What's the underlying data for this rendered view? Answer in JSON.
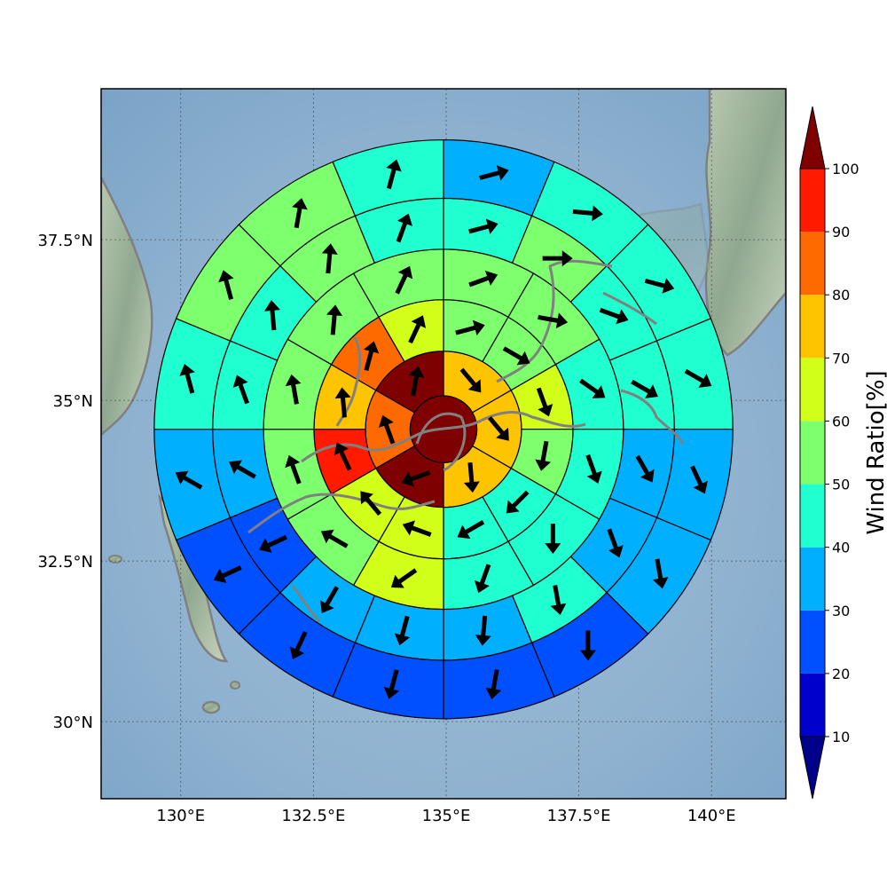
{
  "chart_data": {
    "type": "polar-sector-map",
    "colorbar": {
      "label": "Wind Ratio[%]",
      "ticks": [
        "10",
        "20",
        "30",
        "40",
        "50",
        "60",
        "70",
        "80",
        "90",
        "100"
      ],
      "levels": [
        10,
        20,
        30,
        40,
        50,
        60,
        70,
        80,
        90,
        100
      ],
      "extend": "both",
      "colors": [
        "#00008b",
        "#0000cd",
        "#0050ff",
        "#00b0ff",
        "#20ffd0",
        "#7dff6e",
        "#d2ff1a",
        "#ffc400",
        "#ff6a00",
        "#ff1a00",
        "#7f0000"
      ]
    },
    "x_ticks": [
      "130°E",
      "132.5°E",
      "135°E",
      "137.5°E",
      "140°E"
    ],
    "y_ticks": [
      "37.5°N",
      "35°N",
      "32.5°N",
      "30°N"
    ],
    "lon_range": [
      128.5,
      141.4
    ],
    "lat_range": [
      28.8,
      39.85
    ],
    "grid": true,
    "center": {
      "lon": 134.95,
      "lat": 34.55
    },
    "ring_outer_radii_deg": [
      0.63,
      1.47,
      2.44,
      3.39,
      4.35,
      5.45
    ],
    "rings": [
      {
        "sector_count": 1,
        "values": [
          100
        ],
        "arrow_directions": [
          null
        ]
      },
      {
        "sector_count": 6,
        "values": [
          75,
          70,
          75,
          100,
          80,
          100
        ],
        "arrow_directions": [
          140,
          140,
          175,
          250,
          340,
          10
        ]
      },
      {
        "sector_count": 12,
        "values": [
          55,
          55,
          65,
          55,
          45,
          45,
          65,
          65,
          95,
          75,
          85,
          65
        ],
        "arrow_directions": [
          75,
          120,
          160,
          190,
          225,
          240,
          290,
          320,
          335,
          355,
          15,
          25
        ]
      },
      {
        "sector_count": 12,
        "values": [
          55,
          55,
          45,
          45,
          45,
          45,
          65,
          55,
          55,
          55,
          55,
          55
        ],
        "arrow_directions": [
          70,
          100,
          125,
          160,
          180,
          200,
          235,
          300,
          340,
          350,
          5,
          25
        ]
      },
      {
        "sector_count": 16,
        "values": [
          45,
          55,
          45,
          45,
          35,
          35,
          45,
          35,
          35,
          35,
          25,
          35,
          45,
          45,
          55,
          45
        ],
        "arrow_directions": [
          75,
          90,
          110,
          120,
          150,
          160,
          170,
          185,
          195,
          210,
          245,
          300,
          340,
          355,
          5,
          20
        ]
      },
      {
        "sector_count": 16,
        "values": [
          35,
          45,
          45,
          45,
          35,
          35,
          25,
          25,
          25,
          25,
          25,
          35,
          45,
          55,
          55,
          45
        ],
        "arrow_directions": [
          75,
          95,
          105,
          120,
          155,
          170,
          180,
          190,
          195,
          205,
          245,
          300,
          345,
          345,
          10,
          15
        ]
      }
    ]
  }
}
